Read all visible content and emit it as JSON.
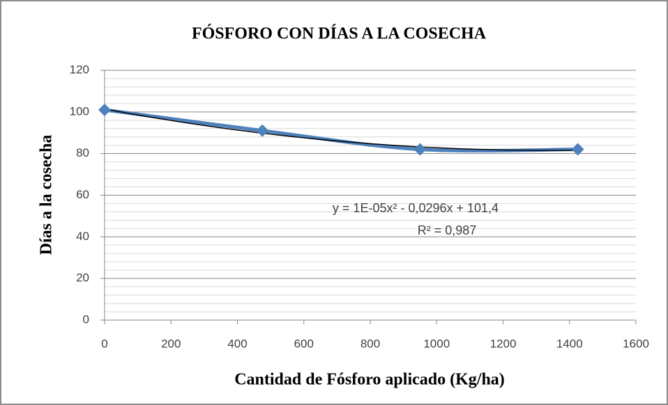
{
  "chart_data": {
    "type": "scatter",
    "title": "FÓSFORO CON DÍAS A LA COSECHA",
    "x_label": "Cantidad de Fósforo aplicado (Kg/ha)",
    "y_label": "Días a la cosecha",
    "series": [
      {
        "color": "#4f81bd",
        "x": [
          0,
          475,
          950,
          1425
        ],
        "values": [
          101,
          91,
          82,
          82
        ]
      }
    ],
    "xlim": [
      0,
      1600
    ],
    "xticks": [
      0,
      200,
      400,
      600,
      800,
      1000,
      1200,
      1400,
      1600
    ],
    "ylim": [
      0,
      120
    ],
    "yticks": [
      0,
      20,
      40,
      60,
      80,
      100,
      120
    ],
    "grid": true,
    "minor_grid": true,
    "smooth": true,
    "marker": "diamond",
    "trendline": {
      "type": "polynomial",
      "color": "#000000",
      "equation": "y = 1E-05x² - 0,0296x + 101,4",
      "r_squared": "R² = 0,987"
    }
  }
}
